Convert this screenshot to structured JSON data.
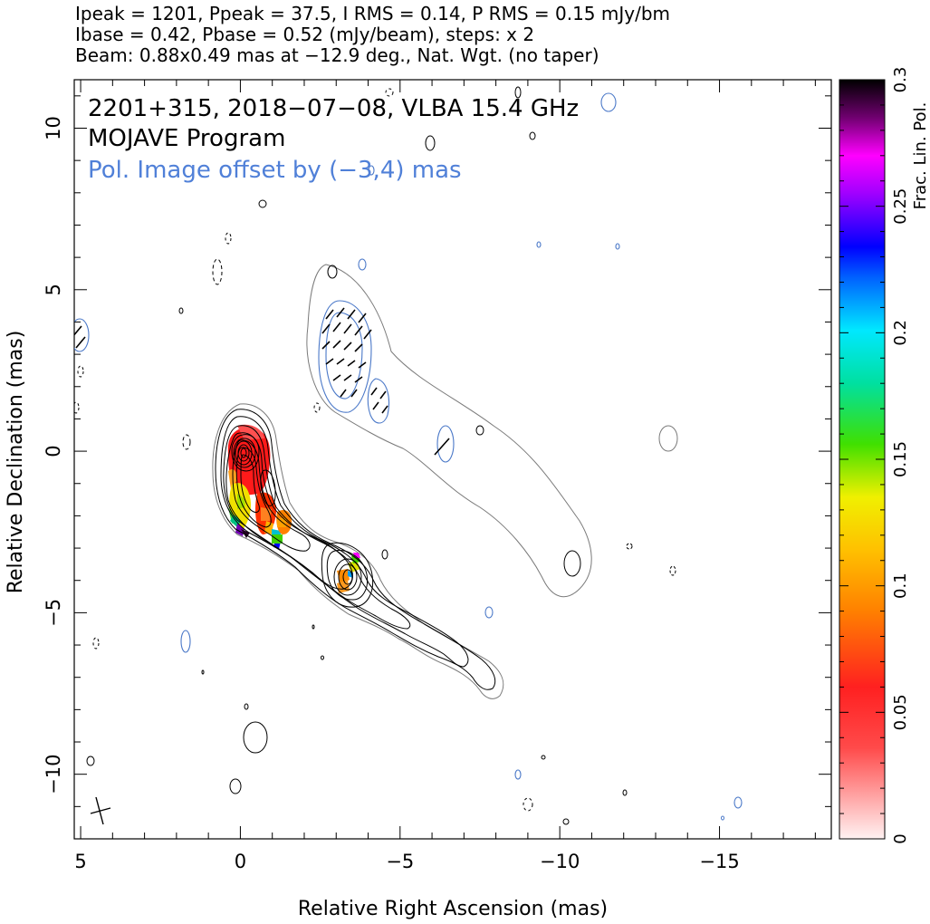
{
  "header": {
    "line1": "Ipeak = 1201, Ppeak = 37.5, I RMS = 0.14, P RMS = 0.15 mJy/bm",
    "line2": "Ibase = 0.42, Pbase = 0.52 (mJy/beam), steps: x 2",
    "line3": "Beam: 0.88x0.49 mas at −12.9 deg., Nat. Wgt. (no taper)"
  },
  "legend_text": {
    "source": "2201+315, 2018−07−08, VLBA 15.4 GHz",
    "program": "MOJAVE Program",
    "pol_offset": "Pol. Image offset by (−3,4) mas"
  },
  "colors": {
    "total_intensity_contour": "#000000",
    "pol_contour": "#4a78c8",
    "lowest_contour": "#7a7a7a",
    "pol_label": "#5080d8",
    "evpa_ticks": "#000000"
  },
  "chart_data": {
    "type": "contour",
    "xlabel": "Relative Right Ascension (mas)",
    "ylabel": "Relative Declination (mas)",
    "xlim": [
      5.2,
      -18.5
    ],
    "ylim": [
      -12.0,
      11.5
    ],
    "xticks": [
      5,
      0,
      -5,
      -10,
      -15
    ],
    "xtick_labels": [
      "5",
      "0",
      "−5",
      "−10",
      "−15"
    ],
    "yticks": [
      10,
      5,
      0,
      -5,
      -10
    ],
    "ytick_labels": [
      "10",
      "5",
      "0",
      "−5",
      "−10"
    ],
    "grid": false,
    "colorbar": {
      "label": "Frac. Lin. Pol.",
      "range": [
        0,
        0.3
      ],
      "ticks": [
        0,
        0.05,
        0.1,
        0.15,
        0.2,
        0.25,
        0.3
      ],
      "tick_labels": [
        "0",
        "0.05",
        "0.1",
        "0.15",
        "0.2",
        "0.25",
        "0.3"
      ]
    },
    "core": {
      "ra": 0.0,
      "dec": 0.0
    },
    "jet_knot": {
      "ra": -3.3,
      "dec": -4.1
    },
    "pol_offset_mas": [
      -3,
      4
    ],
    "beam": {
      "major_mas": 0.88,
      "minor_mas": 0.49,
      "pa_deg": -12.9
    }
  }
}
